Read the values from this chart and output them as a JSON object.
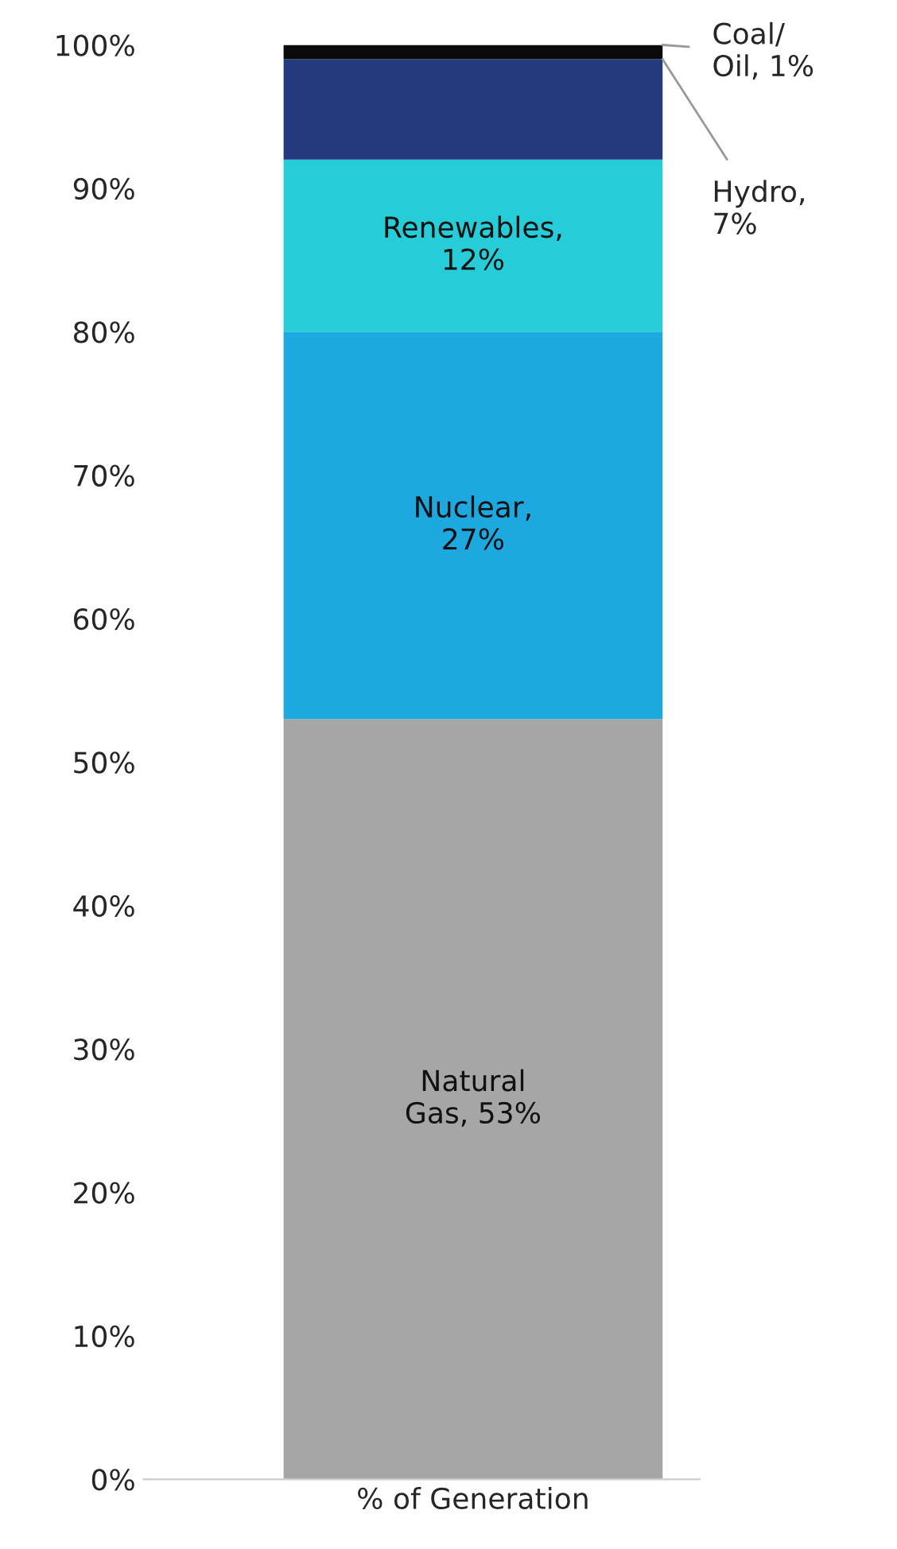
{
  "chart_data": {
    "type": "bar",
    "stacked": true,
    "categories": [
      "% of Generation"
    ],
    "series": [
      {
        "color": "#a6a6a6",
        "values": [
          53
        ],
        "value_labels": [
          "Natural\nGas, 53%"
        ]
      },
      {
        "color": "#1ea8e0",
        "values": [
          27
        ],
        "value_labels": [
          "Nuclear,\n27%"
        ]
      },
      {
        "color": "#26ccd8",
        "values": [
          12
        ],
        "value_labels": [
          "Renewables,\n12%"
        ]
      },
      {
        "color": "#233a7e",
        "values": [
          7
        ],
        "value_labels": [
          "Hydro,\n7%"
        ]
      },
      {
        "color": "#0a0a0a",
        "values": [
          1
        ],
        "value_labels": [
          "Coal/\nOil, 1%"
        ]
      }
    ],
    "ylim": [
      0,
      100
    ],
    "yticks": [
      {
        "value": 0,
        "label": "0%"
      },
      {
        "value": 10,
        "label": "10%"
      },
      {
        "value": 20,
        "label": "20%"
      },
      {
        "value": 30,
        "label": "30%"
      },
      {
        "value": 40,
        "label": "40%"
      },
      {
        "value": 50,
        "label": "50%"
      },
      {
        "value": 60,
        "label": "60%"
      },
      {
        "value": 70,
        "label": "70%"
      },
      {
        "value": 80,
        "label": "80%"
      },
      {
        "value": 90,
        "label": "90%"
      },
      {
        "value": 100,
        "label": "100%"
      }
    ],
    "grid": false,
    "legend": false
  }
}
